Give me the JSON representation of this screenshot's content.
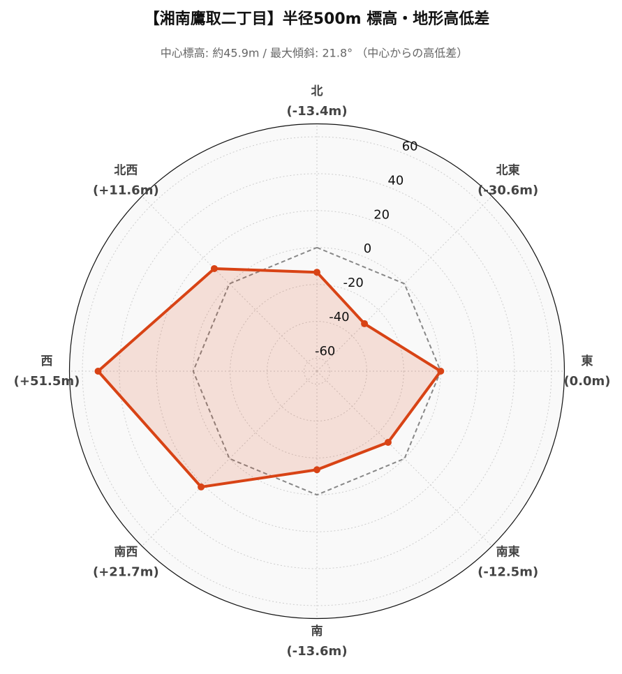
{
  "chart_data": {
    "type": "radar",
    "title": "【湘南鷹取二丁目】半径500m 標高・地形高低差",
    "subtitle": "中心標高: 約45.9m / 最大傾斜: 21.8° （中心からの高低差）",
    "categories": [
      "北",
      "北東",
      "東",
      "南東",
      "南",
      "南西",
      "西",
      "北西"
    ],
    "values": [
      -13.4,
      -30.6,
      0.0,
      -12.5,
      -13.6,
      21.7,
      51.5,
      11.6
    ],
    "value_labels": [
      "(-13.4m)",
      "(-30.6m)",
      "(0.0m)",
      "(-12.5m)",
      "(-13.6m)",
      "(+21.7m)",
      "(+51.5m)",
      "(+11.6m)"
    ],
    "color": "#d84315",
    "reference": 0,
    "ylim": [
      -67,
      67
    ],
    "yticks": [
      -60,
      -40,
      -20,
      0,
      20,
      40,
      60
    ],
    "grid": true
  }
}
